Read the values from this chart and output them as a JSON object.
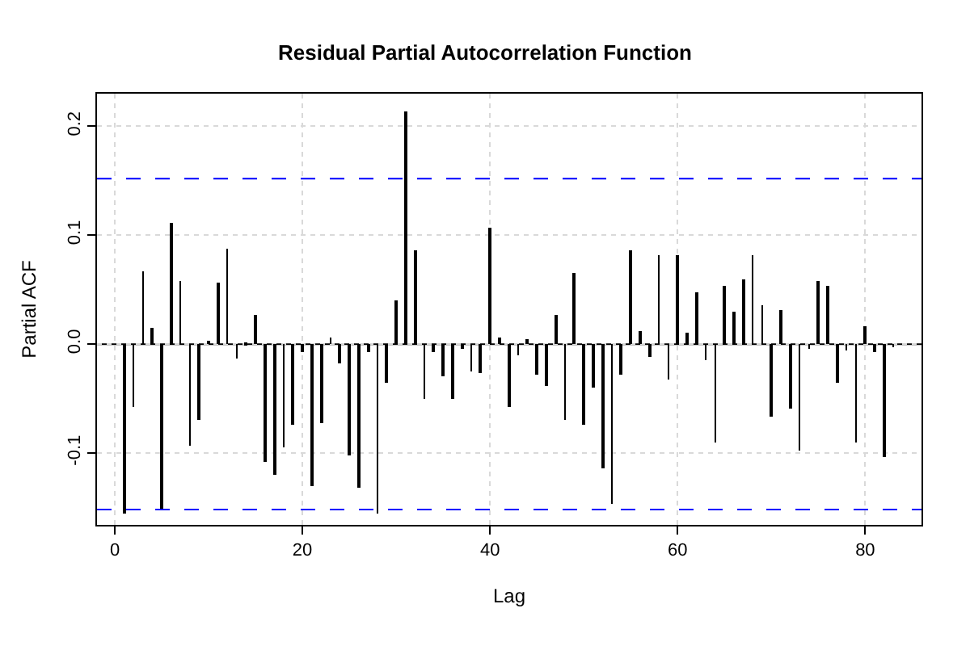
{
  "chart_data": {
    "type": "bar",
    "title": "Residual Partial Autocorrelation Function",
    "xlabel": "Lag",
    "ylabel": "Partial ACF",
    "x": [
      1,
      2,
      3,
      4,
      5,
      6,
      7,
      8,
      9,
      10,
      11,
      12,
      13,
      14,
      15,
      16,
      17,
      18,
      19,
      20,
      21,
      22,
      23,
      24,
      25,
      26,
      27,
      28,
      29,
      30,
      31,
      32,
      33,
      34,
      35,
      36,
      37,
      38,
      39,
      40,
      41,
      42,
      43,
      44,
      45,
      46,
      47,
      48,
      49,
      50,
      51,
      52,
      53,
      54,
      55,
      56,
      57,
      58,
      59,
      60,
      61,
      62,
      63,
      64,
      65,
      66,
      67,
      68,
      69,
      70,
      71,
      72,
      73,
      74,
      75,
      76,
      77,
      78,
      79,
      80,
      81,
      82,
      83
    ],
    "values": [
      -0.155,
      -0.058,
      0.067,
      0.015,
      -0.152,
      0.112,
      0.058,
      -0.093,
      -0.069,
      0.003,
      0.057,
      0.088,
      -0.013,
      0.002,
      0.027,
      -0.108,
      -0.12,
      -0.095,
      -0.074,
      -0.007,
      -0.13,
      -0.072,
      0.006,
      -0.018,
      -0.102,
      -0.132,
      -0.007,
      -0.155,
      -0.036,
      0.04,
      0.214,
      0.086,
      -0.05,
      -0.007,
      -0.029,
      -0.051,
      -0.004,
      -0.025,
      -0.026,
      0.107,
      0.006,
      -0.057,
      -0.01,
      0.004,
      -0.028,
      -0.038,
      0.027,
      -0.069,
      0.066,
      -0.074,
      -0.04,
      -0.114,
      -0.147,
      -0.028,
      0.086,
      0.012,
      -0.012,
      0.082,
      -0.033,
      0.081,
      0.01,
      0.047,
      -0.014,
      -0.091,
      0.053,
      0.03,
      0.06,
      0.081,
      0.036,
      -0.067,
      0.031,
      -0.059,
      -0.098,
      -0.005,
      0.058,
      0.054,
      -0.036,
      -0.006,
      -0.09,
      0.016,
      -0.008,
      -0.103,
      -0.003
    ],
    "color": "#000000",
    "xlim": [
      -1.9,
      86
    ],
    "xticks": [
      0,
      20,
      40,
      60,
      80
    ],
    "ylim": [
      -0.166,
      0.23
    ],
    "yticks": [
      -0.1,
      {
        "value": 0,
        "label": "0.0"
      },
      0.1,
      0.2
    ],
    "grid": true,
    "ref_lines": [
      {
        "axis": "y",
        "value": 0,
        "color": "#000000",
        "line_style": "solid"
      },
      {
        "axis": "y",
        "value": 0.152,
        "color": "#0000ff",
        "line_style": "dashed"
      },
      {
        "axis": "y",
        "value": -0.152,
        "color": "#0000ff",
        "line_style": "dashed"
      }
    ]
  }
}
